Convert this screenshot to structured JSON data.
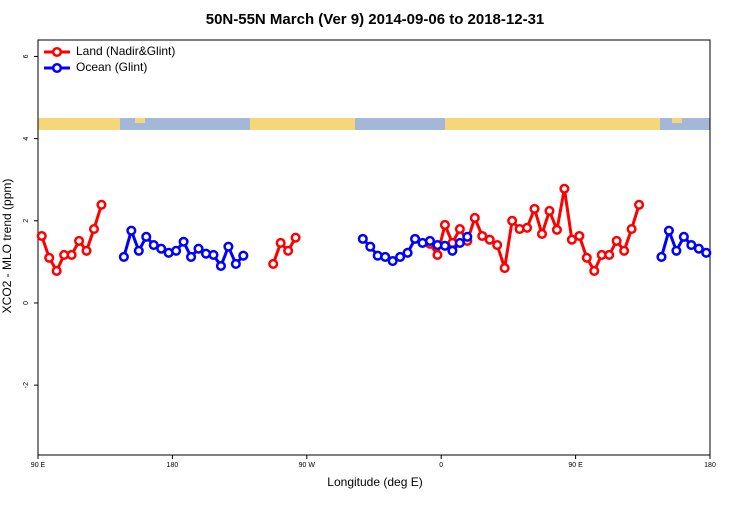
{
  "chart_data": {
    "type": "line",
    "title": "50N-55N March (Ver 9)   2014-09-06 to 2018-12-31",
    "xlabel": "Longitude (deg E)",
    "ylabel": "XCO2 - MLO trend (ppm)",
    "xlim": [
      90,
      540
    ],
    "xticks": [
      {
        "value": 90,
        "label": "90 E"
      },
      {
        "value": 180,
        "label": "180"
      },
      {
        "value": 270,
        "label": "90 W"
      },
      {
        "value": 360,
        "label": "0"
      },
      {
        "value": 450,
        "label": "90 E"
      },
      {
        "value": 540,
        "label": "180"
      }
    ],
    "ylim": [
      -3.7,
      6.4
    ],
    "yticks": [
      -2,
      0,
      2,
      4,
      6
    ],
    "legend": "top-left",
    "series": [
      {
        "name": "Land (Nadir&Glint)",
        "color": "#ff0000",
        "x": [
          92.5,
          97.5,
          102.5,
          107.5,
          112.5,
          117.5,
          122.5,
          127.5,
          132.5,
          null,
          247.5,
          252.5,
          257.5,
          262.5,
          null,
          352.5,
          357.5,
          362.5,
          367.5,
          372.5,
          377.5,
          382.5,
          387.5,
          392.5,
          397.5,
          402.5,
          407.5,
          412.5,
          417.5,
          422.5,
          427.5,
          432.5,
          437.5,
          442.5,
          447.5,
          452.5,
          457.5,
          462.5,
          467.5,
          472.5,
          477.5,
          482.5,
          487.5,
          492.5
        ],
        "values": [
          1.63,
          1.1,
          0.78,
          1.17,
          1.17,
          1.51,
          1.27,
          1.8,
          2.39,
          null,
          0.95,
          1.46,
          1.27,
          1.59,
          null,
          1.44,
          1.17,
          1.9,
          1.46,
          1.8,
          1.51,
          2.07,
          1.63,
          1.54,
          1.41,
          0.85,
          2.0,
          1.8,
          1.83,
          2.29,
          1.68,
          2.24,
          1.78,
          2.78,
          1.54,
          1.63,
          1.1,
          0.78,
          1.17,
          1.17,
          1.51,
          1.27,
          1.8,
          2.39
        ]
      },
      {
        "name": "Ocean (Glint)",
        "color": "#0000ff",
        "x": [
          147.5,
          152.5,
          157.5,
          162.5,
          167.5,
          172.5,
          177.5,
          182.5,
          187.5,
          192.5,
          197.5,
          202.5,
          207.5,
          212.5,
          217.5,
          222.5,
          227.5,
          null,
          307.5,
          312.5,
          317.5,
          322.5,
          327.5,
          332.5,
          337.5,
          342.5,
          347.5,
          352.5,
          357.5,
          362.5,
          367.5,
          372.5,
          377.5,
          null,
          507.5,
          512.5,
          517.5,
          522.5,
          527.5,
          532.5,
          537.5
        ],
        "values": [
          1.12,
          1.76,
          1.27,
          1.61,
          1.41,
          1.32,
          1.22,
          1.27,
          1.49,
          1.12,
          1.32,
          1.2,
          1.17,
          0.9,
          1.37,
          0.95,
          1.15,
          null,
          1.56,
          1.37,
          1.15,
          1.12,
          1.02,
          1.12,
          1.22,
          1.56,
          1.46,
          1.51,
          1.41,
          1.39,
          1.27,
          1.46,
          1.61,
          null,
          1.12,
          1.76,
          1.27,
          1.61,
          1.41,
          1.32,
          1.22
        ]
      }
    ]
  }
}
